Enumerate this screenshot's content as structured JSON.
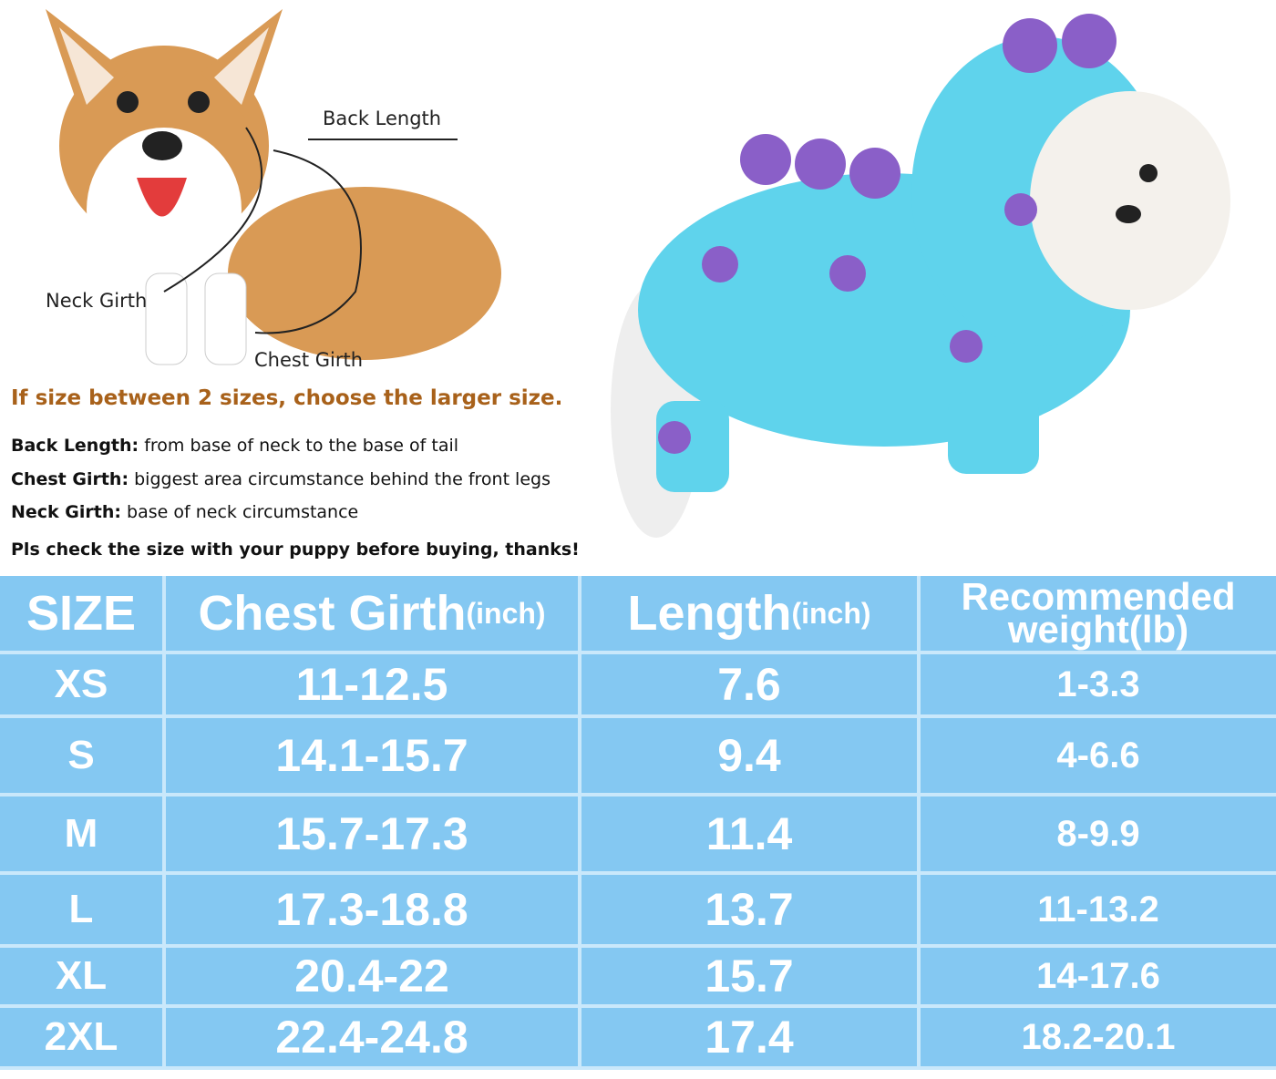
{
  "diagram": {
    "back_length": "Back Length",
    "neck_girth": "Neck Girth",
    "chest_girth": "Chest Girth"
  },
  "tip": "If size between 2 sizes, choose the larger size.",
  "definitions": [
    {
      "term": "Back Length:",
      "text": "from base of neck to the base of tail"
    },
    {
      "term": "Chest Girth:",
      "text": "biggest area circumstance behind the front legs"
    },
    {
      "term": "Neck Girth:",
      "text": "base of neck circumstance"
    }
  ],
  "note": "Pls check the size with your puppy before buying, thanks!",
  "colors": {
    "table_bg": "#84c8f2",
    "grid": "#c9e8fb",
    "tip": "#a8611a",
    "costume": "#5fd3ec",
    "spots": "#8a5fc8"
  },
  "table": {
    "headers": [
      {
        "main": "SIZE",
        "unit": ""
      },
      {
        "main": "Chest Girth",
        "unit": "(inch)"
      },
      {
        "main": "Length",
        "unit": "(inch)"
      },
      {
        "main": "Recommended weight(lb)",
        "unit": ""
      }
    ],
    "rows": [
      [
        "XS",
        "11-12.5",
        "7.6",
        "1-3.3"
      ],
      [
        "S",
        "14.1-15.7",
        "9.4",
        "4-6.6"
      ],
      [
        "M",
        "15.7-17.3",
        "11.4",
        "8-9.9"
      ],
      [
        "L",
        "17.3-18.8",
        "13.7",
        "11-13.2"
      ],
      [
        "XL",
        "20.4-22",
        "15.7",
        "14-17.6"
      ],
      [
        "2XL",
        "22.4-24.8",
        "17.4",
        "18.2-20.1"
      ]
    ]
  }
}
